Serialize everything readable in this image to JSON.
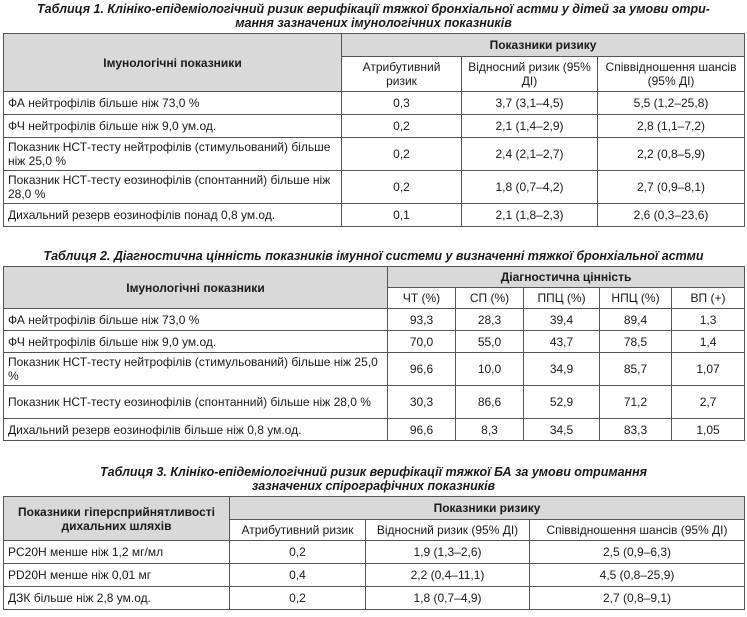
{
  "table1": {
    "caption_line1": "Таблиця 1. Клініко-епідеміологічний ризик верифікації тяжкої бронхіальної астми у дітей за умови отри-",
    "caption_line2": "мання зазначених імунологічних показників",
    "row_header": "Імунологічні показники",
    "group_header": "Показники ризику",
    "columns": [
      "Атрибутивний ризик",
      "Відносний ризик (95% ДІ)",
      "Співвідношення шансів (95% ДІ)"
    ],
    "rows": [
      {
        "label": "ФА нейтрофілів більше ніж 73,0 %",
        "ar": "0,3",
        "rr": "3,7 (3,1–4,5)",
        "or": "5,5 (1,2–25,8)"
      },
      {
        "label": "ФЧ нейтрофілів більше ніж 9,0 ум.од.",
        "ar": "0,2",
        "rr": "2,1 (1,4–2,9)",
        "or": "2,8 (1,1–7,2)"
      },
      {
        "label": "Показник НСТ-тесту нейтрофілів (стимульований) більше ніж 25,0 %",
        "ar": "0,2",
        "rr": "2,4 (2,1–2,7)",
        "or": "2,2 (0,8–5,9)"
      },
      {
        "label": "Показник НСТ-тесту еозинофілів (спонтанний) більше ніж 28,0 %",
        "ar": "0,2",
        "rr": "1,8 (0,7–4,2)",
        "or": "2,7 (0,9–8,1)"
      },
      {
        "label": "Дихальний резерв еозинофілів понад 0,8 ум.од.",
        "ar": "0,1",
        "rr": "2,1 (1,8–2,3)",
        "or": "2,6 (0,3–23,6)"
      }
    ]
  },
  "table2": {
    "caption": "Таблиця 2. Діагностична цінність показників імунної системи у визначенні тяжкої бронхіальної астми",
    "row_header": "Імунологічні показники",
    "group_header": "Діагностична цінність",
    "columns": [
      "ЧТ (%)",
      "СП (%)",
      "ППЦ (%)",
      "НПЦ (%)",
      "ВП (+)"
    ],
    "rows": [
      {
        "label": "ФА нейтрофілів більше ніж 73,0 %",
        "values": [
          "93,3",
          "28,3",
          "39,4",
          "89,4",
          "1,3"
        ]
      },
      {
        "label": "ФЧ нейтрофілів більше ніж 9,0 ум.од.",
        "values": [
          "70,0",
          "55,0",
          "43,7",
          "78,5",
          "1,4"
        ]
      },
      {
        "label": "Показник НСТ-тесту нейтрофілів (стимульований) більше ніж 25,0 %",
        "values": [
          "96,6",
          "10,0",
          "34,9",
          "85,7",
          "1,07"
        ]
      },
      {
        "label": "Показник НСТ-тесту еозинофілів (спонтанний) більше ніж 28,0 %",
        "values": [
          "30,3",
          "86,6",
          "52,9",
          "71,2",
          "2,7"
        ]
      },
      {
        "label": "Дихальний резерв еозинофілів більше ніж 0,8 ум.од.",
        "values": [
          "96,6",
          "8,3",
          "34,5",
          "83,3",
          "1,05"
        ]
      }
    ]
  },
  "table3": {
    "caption_line1": "Таблиця 3. Клініко-епідеміологічний ризик верифікації тяжкої БА за умови отримання",
    "caption_line2": "зазначених спірографічних показників",
    "row_header": "Показники гіперсприйнятливості дихальних шляхів",
    "group_header": "Показники ризику",
    "columns": [
      "Атрибутивний ризик",
      "Відносний ризик (95% ДІ)",
      "Співвідношення шансів (95% ДІ)"
    ],
    "rows": [
      {
        "label": "PC20H менше ніж 1,2 мг/мл",
        "ar": "0,2",
        "rr": "1,9 (1,3–2,6)",
        "or": "2,5 (0,9–6,3)"
      },
      {
        "label": "PD20H менше ніж 0,01 мг",
        "ar": "0,4",
        "rr": "2,2 (0,4–11,1)",
        "or": "4,5 (0,8–25,9)"
      },
      {
        "label": "ДЗК більше ніж 2,8 ум.од.",
        "ar": "0,2",
        "rr": "1,8 (0,7–4,9)",
        "or": "2,7 (0,8–9,1)"
      }
    ]
  }
}
